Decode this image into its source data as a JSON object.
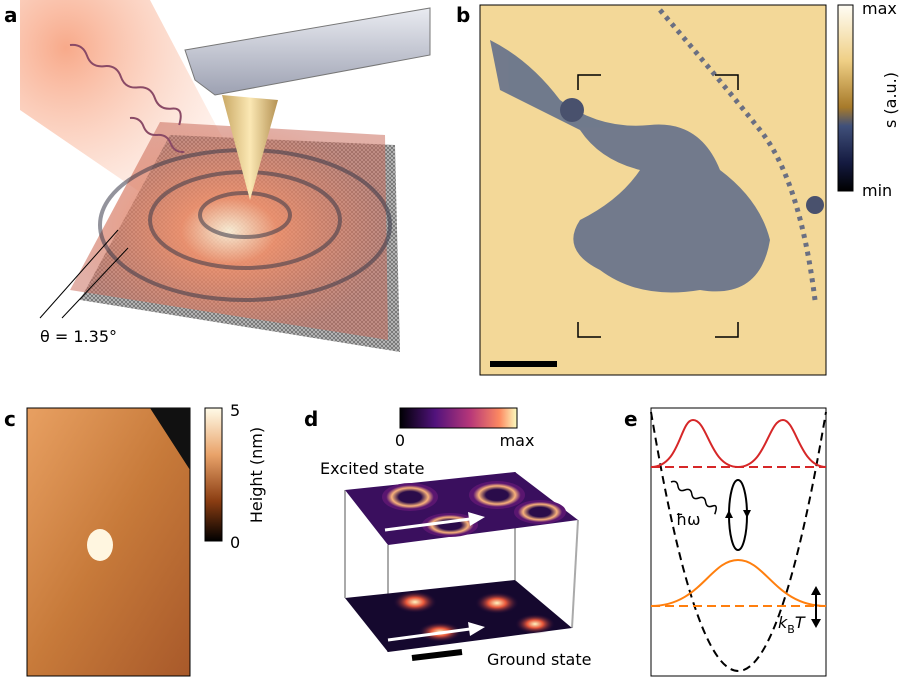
{
  "panels": [
    {
      "label": "a",
      "annotation": "θ = 1.35°"
    },
    {
      "label": "b",
      "colorbar": {
        "max": "max",
        "min": "min",
        "label": "s (a.u.)"
      }
    },
    {
      "label": "c",
      "colorbar": {
        "max": 5,
        "min": 0,
        "label": "Height (nm)"
      }
    },
    {
      "label": "d",
      "colorbar": {
        "min": 0,
        "max": "max"
      },
      "upper": "Excited state",
      "lower": "Ground state"
    },
    {
      "label": "e",
      "photon": "ħω",
      "thermal": {
        "symbol": "k",
        "subscript": "B",
        "variable": "T"
      }
    }
  ]
}
